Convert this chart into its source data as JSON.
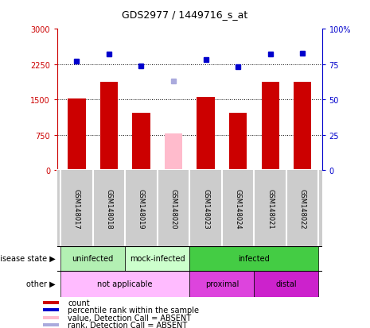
{
  "title": "GDS2977 / 1449716_s_at",
  "samples": [
    "GSM148017",
    "GSM148018",
    "GSM148019",
    "GSM148020",
    "GSM148023",
    "GSM148024",
    "GSM148021",
    "GSM148022"
  ],
  "counts": [
    1520,
    1870,
    1220,
    null,
    1560,
    1210,
    1870,
    1870
  ],
  "counts_absent": [
    null,
    null,
    null,
    780,
    null,
    null,
    null,
    null
  ],
  "percentile_ranks": [
    77,
    82,
    74,
    null,
    78,
    73,
    82,
    83
  ],
  "percentile_ranks_absent": [
    null,
    null,
    null,
    63,
    null,
    null,
    null,
    null
  ],
  "bar_color_normal": "#cc0000",
  "bar_color_absent": "#ffbbcc",
  "dot_color_normal": "#0000cc",
  "dot_color_absent": "#aaaadd",
  "ylim_left": [
    0,
    3000
  ],
  "ylim_right": [
    0,
    100
  ],
  "yticks_left": [
    0,
    750,
    1500,
    2250,
    3000
  ],
  "yticks_right": [
    0,
    25,
    50,
    75,
    100
  ],
  "ytick_labels_left": [
    "0",
    "750",
    "1500",
    "2250",
    "3000"
  ],
  "ytick_labels_right": [
    "0",
    "25",
    "50",
    "75",
    "100%"
  ],
  "disease_state_groups": [
    {
      "label": "uninfected",
      "start": 0,
      "end": 2,
      "color": "#b3f0b3"
    },
    {
      "label": "mock-infected",
      "start": 2,
      "end": 4,
      "color": "#ccffcc"
    },
    {
      "label": "infected",
      "start": 4,
      "end": 8,
      "color": "#44cc44"
    }
  ],
  "other_groups": [
    {
      "label": "not applicable",
      "start": 0,
      "end": 4,
      "color": "#ffbbff"
    },
    {
      "label": "proximal",
      "start": 4,
      "end": 6,
      "color": "#dd44dd"
    },
    {
      "label": "distal",
      "start": 6,
      "end": 8,
      "color": "#cc22cc"
    }
  ],
  "legend_items": [
    {
      "label": "count",
      "color": "#cc0000"
    },
    {
      "label": "percentile rank within the sample",
      "color": "#0000cc"
    },
    {
      "label": "value, Detection Call = ABSENT",
      "color": "#ffbbcc"
    },
    {
      "label": "rank, Detection Call = ABSENT",
      "color": "#aaaadd"
    }
  ],
  "bar_width": 0.55,
  "bg_color": "#ffffff",
  "tick_label_area_color": "#cccccc",
  "title_fontsize": 9,
  "label_fontsize": 7.5
}
